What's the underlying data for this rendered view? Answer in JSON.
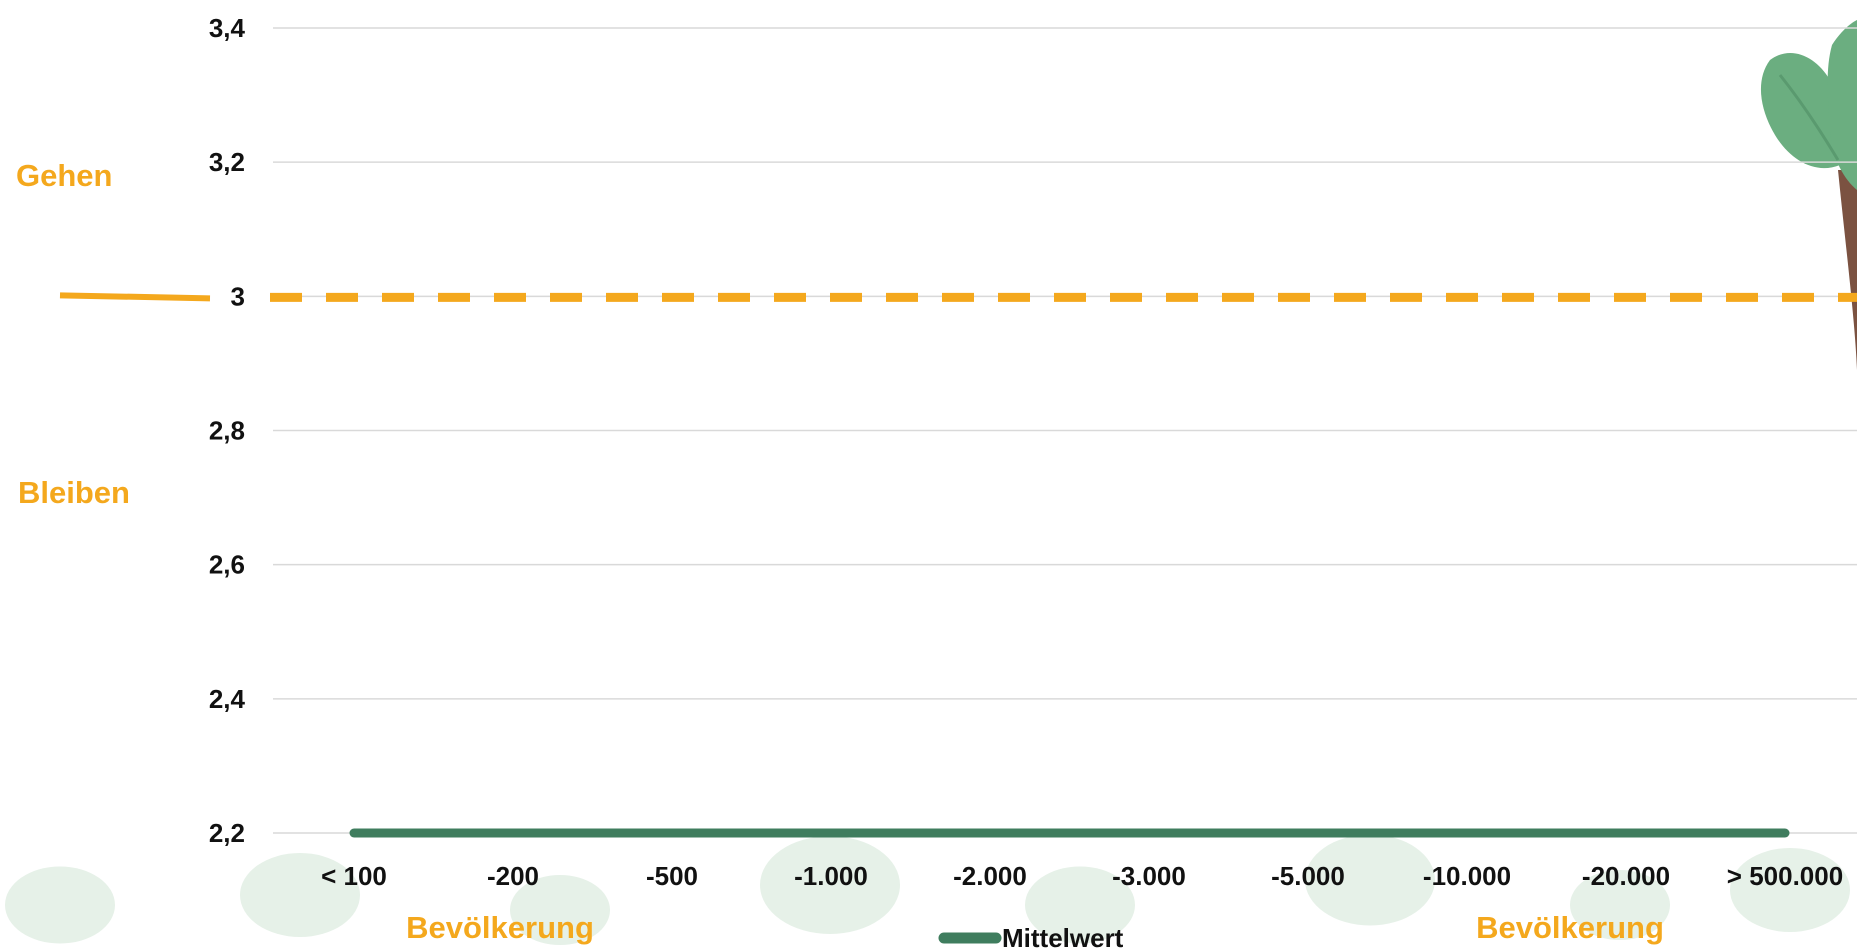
{
  "colors": {
    "accent": "#F4A81D",
    "series": "#3F7D5E",
    "grid": "#D9D9D9",
    "text": "#111111",
    "decor_leaf": "#E6F1E8"
  },
  "side_labels": {
    "upper": "Gehen",
    "lower": "Bleiben"
  },
  "bottom_labels": {
    "left": "Bevölkerung",
    "right": "Bevölkerung"
  },
  "chart_data": {
    "type": "line",
    "categories": [
      "< 100",
      "-200",
      "-500",
      "-1.000",
      "-2.000",
      "-3.000",
      "-5.000",
      "-10.000",
      "-20.000",
      "> 500.000"
    ],
    "y_tick_labels": [
      "3,4",
      "3,2",
      "3",
      "2,8",
      "2,6",
      "2,4",
      "2,2"
    ],
    "y_ticks": [
      3.4,
      3.2,
      3.0,
      2.8,
      2.6,
      2.4,
      2.2
    ],
    "ylim": [
      2.2,
      3.4
    ],
    "grid": true,
    "reference_line": 3.0,
    "series": [
      {
        "name": "Mittelwert",
        "values": [
          2.2,
          2.2,
          2.2,
          2.2,
          2.2,
          2.2,
          2.2,
          2.2,
          2.2,
          2.2
        ]
      }
    ],
    "legend": "bottom-center",
    "decoration": "palm-tree-right"
  }
}
